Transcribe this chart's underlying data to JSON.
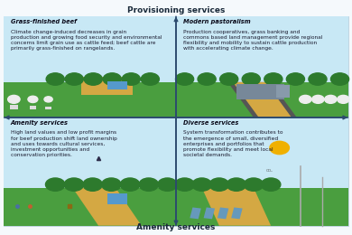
{
  "title_top": "Provisioning services",
  "title_bottom": "Amenity services",
  "quadrants": [
    {
      "title": "Grass-finished beef",
      "text": "Climate change-induced decreases in grain\nproduction and growing food security and environmental\nconcerns limit grain use as cattle feed; beef cattle are\nprimarily grass-finished on rangelands.",
      "position": "top-left"
    },
    {
      "title": "Modern pastoralism",
      "text": "Production cooperatives, grass banking and\ncommons based land management provide regional\nflexibility and mobility to sustain cattle production\nwith accelerating climate change.",
      "position": "top-right"
    },
    {
      "title": "Amenity services",
      "text": "High land values and low profit margins\nfor beef production shift land ownership\nand uses towards cultural services,\ninvestment opportunities and\nconservation priorities.",
      "position": "bottom-left"
    },
    {
      "title": "Diverse services",
      "text": "System transformation contributes to\nthe emergence of small, diversified\nenterprises and portfolios that\npromote flexibility and meet local\nsocietal demands.",
      "position": "bottom-right"
    }
  ],
  "bg_color": "#f0f7ff",
  "panel_bg_top_left": "#ddeeff",
  "panel_bg_top_right": "#ddeeff",
  "panel_bg_bottom_left": "#ddeeff",
  "panel_bg_bottom_right": "#ddeeff",
  "axis_color": "#2c4a6e",
  "title_color": "#1a1a2e",
  "text_color": "#1a1a2e",
  "bold_color": "#000000"
}
